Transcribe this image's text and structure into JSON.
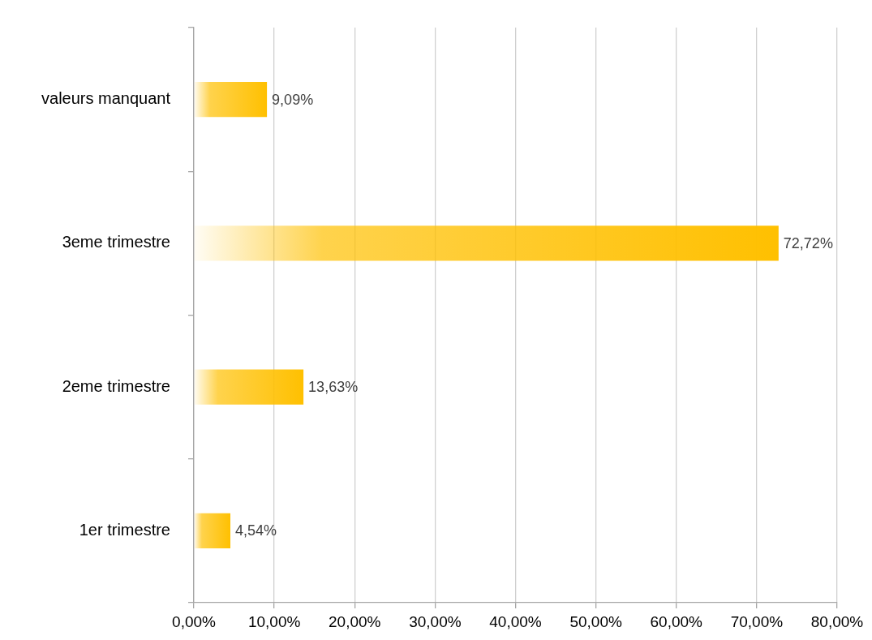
{
  "chart_data": {
    "type": "bar",
    "orientation": "horizontal",
    "categories": [
      "valeurs manquant",
      "3eme trimestre",
      "2eme trimestre",
      "1er trimestre"
    ],
    "values": [
      9.09,
      72.72,
      13.63,
      4.54
    ],
    "color": "#ffc000",
    "value_labels": [
      "9,09%",
      "72,72%",
      "13,63%",
      "4,54%"
    ],
    "xlim": [
      0,
      80
    ],
    "xticks": [
      {
        "value": 0,
        "label": "0,00%"
      },
      {
        "value": 10,
        "label": "10,00%"
      },
      {
        "value": 20,
        "label": "20,00%"
      },
      {
        "value": 30,
        "label": "30,00%"
      },
      {
        "value": 40,
        "label": "40,00%"
      },
      {
        "value": 50,
        "label": "50,00%"
      },
      {
        "value": 60,
        "label": "60,00%"
      },
      {
        "value": 70,
        "label": "70,00%"
      },
      {
        "value": 80,
        "label": "80,00%"
      }
    ],
    "grid": "x"
  }
}
